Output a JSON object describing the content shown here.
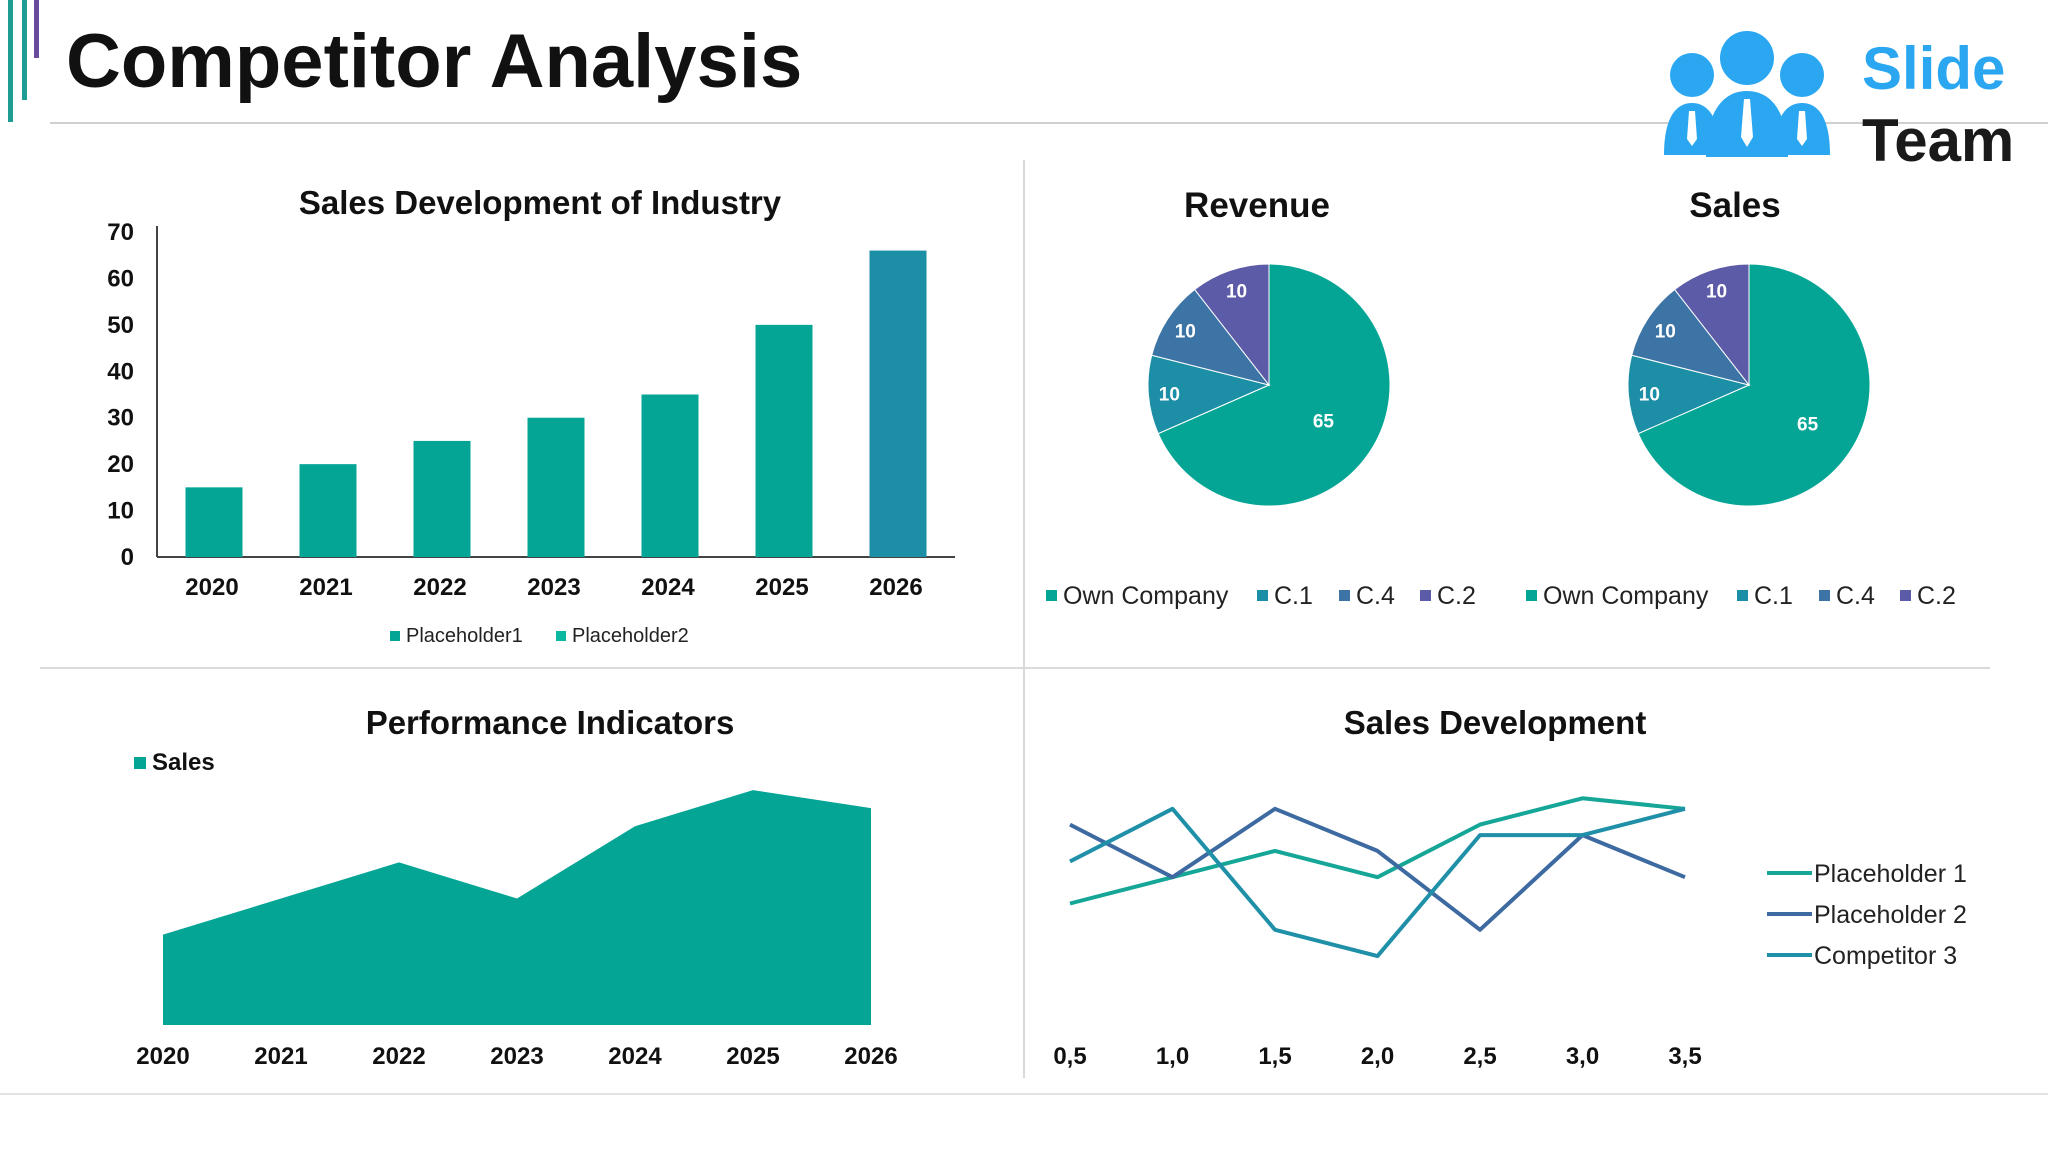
{
  "page": {
    "title": "Competitor Analysis"
  },
  "logo": {
    "line1": "Slide",
    "line2": "Team",
    "icon": "people-group-icon",
    "color_primary": "#2aa7f0",
    "color_text": "#1a1a1a"
  },
  "colors": {
    "teal": "#05a596",
    "blue_teal": "#1c8fa6",
    "steel": "#3d74a6",
    "purple": "#5b5ba8",
    "accent_teal": "#1d9d93",
    "accent_purple": "#6a4a9c"
  },
  "chart_data": [
    {
      "id": "industry",
      "type": "bar",
      "title": "Sales Development of Industry",
      "categories": [
        "2020",
        "2021",
        "2022",
        "2023",
        "2024",
        "2025",
        "2026"
      ],
      "series": [
        {
          "name": "Placeholder1",
          "values": [
            15,
            20,
            25,
            30,
            35,
            50,
            null
          ]
        },
        {
          "name": "Placeholder2",
          "values": [
            null,
            null,
            null,
            null,
            null,
            null,
            66
          ]
        }
      ],
      "series_colors": [
        "#05a596",
        "#1c8fa6"
      ],
      "legend_colors": [
        "#05a596",
        "#0bb9a0"
      ],
      "ylim": [
        0,
        70
      ],
      "yticks": [
        0,
        10,
        20,
        30,
        40,
        50,
        60,
        70
      ],
      "grid": false,
      "legend": "bottom"
    },
    {
      "id": "revenue",
      "type": "pie",
      "title": "Revenue",
      "labels": [
        "Own Company",
        "C.1",
        "C.4",
        "C.2"
      ],
      "values": [
        65,
        10,
        10,
        10
      ],
      "colors": [
        "#05a596",
        "#1c8fa6",
        "#3d74a6",
        "#5b5ba8"
      ],
      "legend": "bottom"
    },
    {
      "id": "sales",
      "type": "pie",
      "title": "Sales",
      "labels": [
        "Own Company",
        "C.1",
        "C.4",
        "C.2"
      ],
      "values": [
        65,
        10,
        10,
        10
      ],
      "colors": [
        "#05a596",
        "#1c8fa6",
        "#3d74a6",
        "#5b5ba8"
      ],
      "legend": "bottom"
    },
    {
      "id": "performance",
      "type": "area",
      "title": "Performance Indicators",
      "categories": [
        "2020",
        "2021",
        "2022",
        "2023",
        "2024",
        "2025",
        "2026"
      ],
      "series": [
        {
          "name": "Sales",
          "values": [
            2.5,
            3.5,
            4.5,
            3.5,
            5.5,
            6.5,
            6.0
          ]
        }
      ],
      "colors": [
        "#05a596"
      ],
      "ylim": [
        0,
        7
      ],
      "grid": false,
      "legend": "top-left"
    },
    {
      "id": "sales-dev",
      "type": "line",
      "title": "Sales Development",
      "categories": [
        "0,5",
        "1,0",
        "1,5",
        "2,0",
        "2,5",
        "3,0",
        "3,5"
      ],
      "series": [
        {
          "name": "Placeholder 1",
          "values": [
            2.5,
            3.0,
            3.5,
            3.0,
            4.0,
            4.5,
            4.3
          ]
        },
        {
          "name": "Placeholder 2",
          "values": [
            4.0,
            3.0,
            4.3,
            3.5,
            2.0,
            3.8,
            3.0
          ]
        },
        {
          "name": "Competitor 3",
          "values": [
            3.3,
            4.3,
            2.0,
            1.5,
            3.8,
            3.8,
            4.3
          ]
        }
      ],
      "colors": [
        "#15a698",
        "#3d6aa0",
        "#1f90a8"
      ],
      "ylim": [
        0,
        5
      ],
      "grid": false,
      "legend": "right"
    }
  ]
}
